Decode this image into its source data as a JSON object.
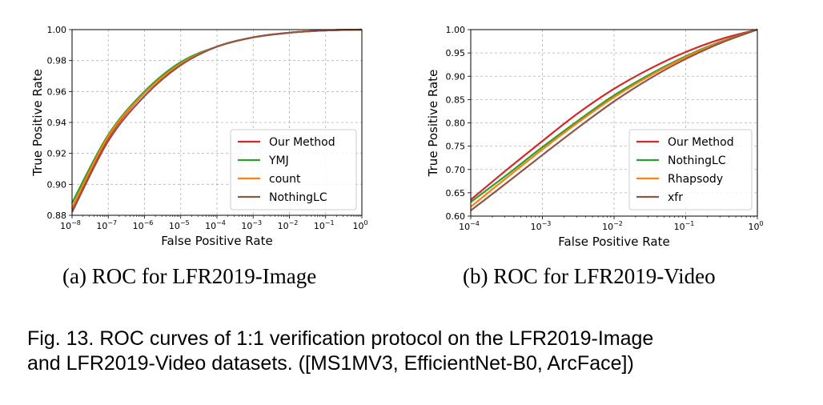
{
  "subcaptions": {
    "a": "(a)  ROC for LFR2019-Image",
    "b": "(b)  ROC for LFR2019-Video"
  },
  "figure_caption": {
    "line1": "Fig. 13. ROC curves of 1:1 verification protocol on the LFR2019-Image",
    "line2": "and LFR2019-Video datasets. ([MS1MV3, EfficientNet-B0, ArcFace])"
  },
  "chart_data": [
    {
      "type": "line",
      "xlabel": "False Positive Rate",
      "ylabel": "True Positive Rate",
      "xscale": "log",
      "xlim": [
        1e-08,
        1
      ],
      "ylim": [
        0.88,
        1.0
      ],
      "xticks": [
        1e-08,
        1e-07,
        1e-06,
        1e-05,
        0.0001,
        0.001,
        0.01,
        0.1,
        1
      ],
      "xtick_exponents": [
        "−8",
        "−7",
        "−6",
        "−5",
        "−4",
        "−3",
        "−2",
        "−1",
        "0"
      ],
      "yticks": [
        "0.88",
        "0.90",
        "0.92",
        "0.94",
        "0.96",
        "0.98",
        "1.00"
      ],
      "grid": true,
      "legend_position": "bottom-right",
      "series": [
        {
          "name": "Our Method",
          "color": "#d62728",
          "x": [
            1e-08,
            1e-07,
            1e-06,
            1e-05,
            0.0001,
            0.001,
            0.01,
            0.1,
            1
          ],
          "y": [
            0.884,
            0.93,
            0.959,
            0.978,
            0.989,
            0.995,
            0.998,
            0.9995,
            1.0
          ]
        },
        {
          "name": "YMJ",
          "color": "#2ca02c",
          "x": [
            1e-08,
            1e-07,
            1e-06,
            1e-05,
            0.0001,
            0.001,
            0.01,
            0.1,
            1
          ],
          "y": [
            0.888,
            0.932,
            0.96,
            0.979,
            0.989,
            0.995,
            0.998,
            0.9995,
            1.0
          ]
        },
        {
          "name": "count",
          "color": "#ff7f0e",
          "x": [
            1e-08,
            1e-07,
            1e-06,
            1e-05,
            0.0001,
            0.001,
            0.01,
            0.1,
            1
          ],
          "y": [
            0.885,
            0.931,
            0.959,
            0.978,
            0.989,
            0.995,
            0.998,
            0.9995,
            1.0
          ]
        },
        {
          "name": "NothingLC",
          "color": "#8c564b",
          "x": [
            1e-08,
            1e-07,
            1e-06,
            1e-05,
            0.0001,
            0.001,
            0.01,
            0.1,
            1
          ],
          "y": [
            0.882,
            0.928,
            0.957,
            0.977,
            0.989,
            0.995,
            0.998,
            0.9995,
            1.0
          ]
        }
      ]
    },
    {
      "type": "line",
      "xlabel": "False Positive Rate",
      "ylabel": "True Positive Rate",
      "xscale": "log",
      "xlim": [
        0.0001,
        1
      ],
      "ylim": [
        0.6,
        1.0
      ],
      "xticks": [
        0.0001,
        0.001,
        0.01,
        0.1,
        1
      ],
      "xtick_exponents": [
        "−4",
        "−3",
        "−2",
        "−1",
        "0"
      ],
      "yticks": [
        "0.60",
        "0.65",
        "0.70",
        "0.75",
        "0.80",
        "0.85",
        "0.90",
        "0.95",
        "1.00"
      ],
      "grid": true,
      "legend_position": "bottom-right",
      "series": [
        {
          "name": "Our Method",
          "color": "#d62728",
          "x": [
            0.0001,
            0.000316,
            0.001,
            0.00316,
            0.01,
            0.0316,
            0.1,
            0.316,
            1
          ],
          "y": [
            0.635,
            0.699,
            0.761,
            0.821,
            0.873,
            0.916,
            0.952,
            0.98,
            1.0
          ]
        },
        {
          "name": "NothingLC",
          "color": "#2ca02c",
          "x": [
            0.0001,
            0.000316,
            0.001,
            0.00316,
            0.01,
            0.0316,
            0.1,
            0.316,
            1
          ],
          "y": [
            0.63,
            0.688,
            0.748,
            0.805,
            0.859,
            0.904,
            0.943,
            0.975,
            1.0
          ]
        },
        {
          "name": "Rhapsody",
          "color": "#ff7f0e",
          "x": [
            0.0001,
            0.000316,
            0.001,
            0.00316,
            0.01,
            0.0316,
            0.1,
            0.316,
            1
          ],
          "y": [
            0.62,
            0.682,
            0.743,
            0.801,
            0.855,
            0.901,
            0.941,
            0.974,
            1.0
          ]
        },
        {
          "name": "xfr",
          "color": "#8c564b",
          "x": [
            0.0001,
            0.000316,
            0.001,
            0.00316,
            0.01,
            0.0316,
            0.1,
            0.316,
            1
          ],
          "y": [
            0.612,
            0.671,
            0.731,
            0.79,
            0.846,
            0.895,
            0.937,
            0.972,
            1.0
          ]
        }
      ]
    }
  ]
}
